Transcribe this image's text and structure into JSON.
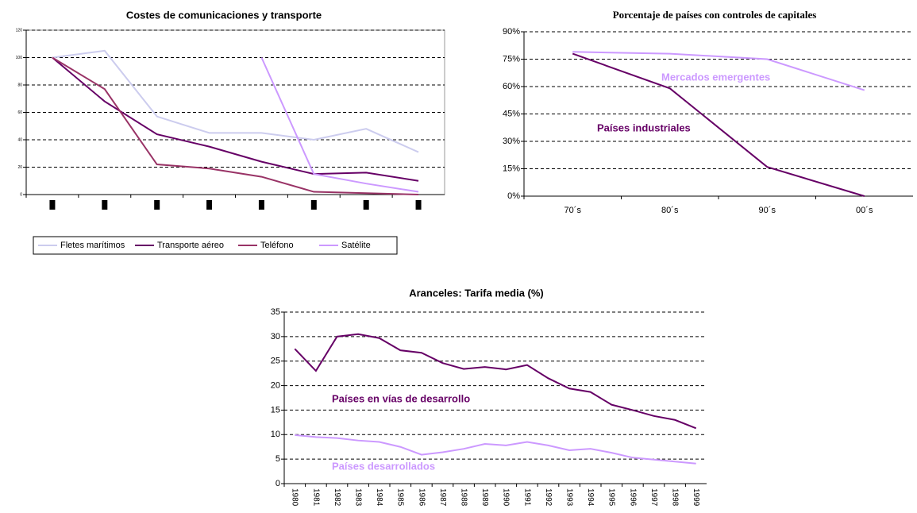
{
  "chart_data": [
    {
      "type": "line",
      "title": "Costes de comunicaciones y transporte",
      "categories": [
        null,
        null,
        null,
        null,
        null,
        null,
        null,
        null
      ],
      "series": [
        {
          "name": "Fletes marítimos",
          "color": "#ccccee",
          "values": [
            100,
            105,
            57,
            45,
            45,
            40,
            48,
            31
          ]
        },
        {
          "name": "Transporte aéreo",
          "color": "#660066",
          "values": [
            100,
            68,
            44,
            35,
            24,
            15,
            16,
            10
          ]
        },
        {
          "name": "Teléfono",
          "color": "#993366",
          "values": [
            100,
            77,
            22,
            19,
            13,
            2,
            1,
            0
          ]
        },
        {
          "name": "Satélite",
          "color": "#cc99ff",
          "values": [
            null,
            null,
            null,
            null,
            100,
            15,
            8,
            2
          ]
        }
      ],
      "ylim": [
        0,
        120
      ],
      "yticks": [
        0,
        20,
        40,
        60,
        80,
        100,
        120
      ],
      "grid": true,
      "legend": "bottom"
    },
    {
      "type": "line",
      "title": "Porcentaje de países con controles de capitales",
      "categories": [
        "70´s",
        "80´s",
        "90´s",
        "00´s"
      ],
      "series": [
        {
          "name": "Mercados emergentes",
          "color": "#cc99ff",
          "values": [
            79,
            78,
            75,
            58
          ]
        },
        {
          "name": "Países industriales",
          "color": "#660066",
          "values": [
            78,
            59,
            16,
            0
          ]
        }
      ],
      "ylim": [
        0,
        90
      ],
      "yticks": [
        {
          "value": 0,
          "label": "0%"
        },
        {
          "value": 15,
          "label": "15%"
        },
        {
          "value": 30,
          "label": "30%"
        },
        {
          "value": 45,
          "label": "45%"
        },
        {
          "value": 60,
          "label": "60%"
        },
        {
          "value": 75,
          "label": "75%"
        },
        {
          "value": 90,
          "label": "90%"
        }
      ],
      "grid": true,
      "legend": "inline"
    },
    {
      "type": "line",
      "title": "Aranceles: Tarifa media (%)",
      "categories": [
        "1980",
        "1981",
        "1982",
        "1983",
        "1984",
        "1985",
        "1986",
        "1987",
        "1988",
        "1989",
        "1990",
        "1991",
        "1992",
        "1993",
        "1994",
        "1995",
        "1996",
        "1997",
        "1998",
        "1999"
      ],
      "series": [
        {
          "name": "Países en vías de desarrollo",
          "color": "#660066",
          "values": [
            27.5,
            23,
            30,
            30.5,
            29.7,
            27.2,
            26.7,
            24.6,
            23.4,
            23.8,
            23.3,
            24.2,
            21.5,
            19.4,
            18.7,
            16.1,
            15,
            13.8,
            13,
            11.3
          ]
        },
        {
          "name": "Países desarrollados",
          "color": "#cc99ff",
          "values": [
            9.9,
            9.5,
            9.3,
            8.8,
            8.5,
            7.5,
            5.9,
            6.4,
            7.1,
            8.1,
            7.8,
            8.5,
            7.8,
            6.8,
            7.1,
            6.3,
            5.3,
            4.9,
            4.5,
            4.1
          ]
        }
      ],
      "ylim": [
        0,
        35
      ],
      "yticks": [
        0,
        5,
        10,
        15,
        20,
        25,
        30,
        35
      ],
      "grid": true,
      "legend": "inline"
    }
  ]
}
